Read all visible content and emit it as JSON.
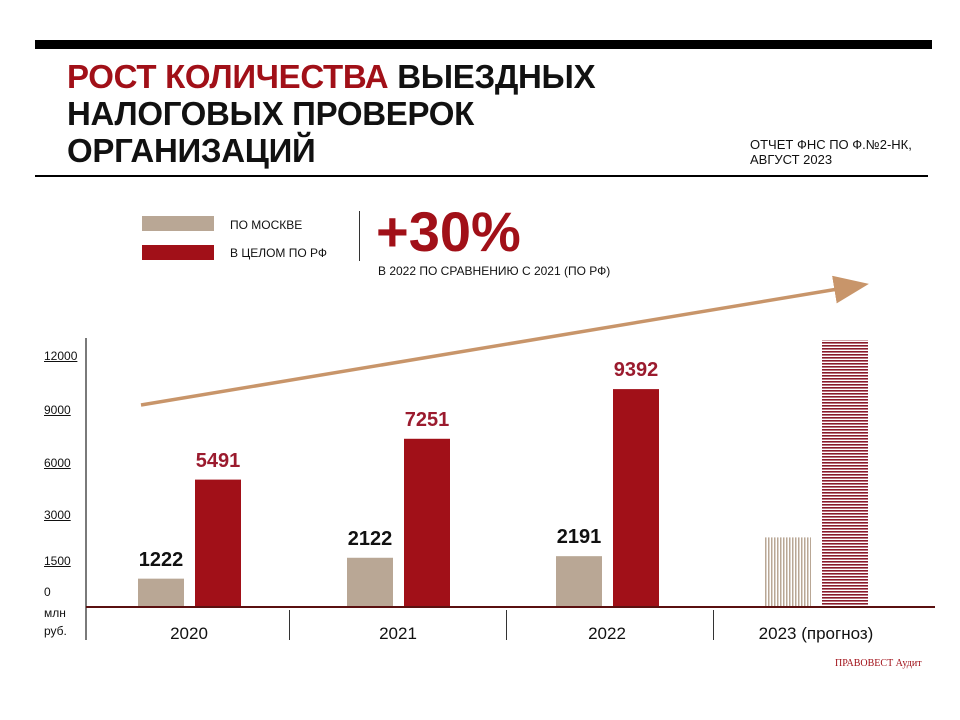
{
  "title": {
    "red": "РОСТ КОЛИЧЕСТВА",
    "rest_line1": " ВЫЕЗДНЫХ",
    "line2": "НАЛОГОВЫХ ПРОВЕРОК",
    "line3": "ОРГАНИЗАЦИЙ"
  },
  "source": {
    "line1": "ОТЧЕТ ФНС ПО Ф.№2-НК,",
    "line2": "АВГУСТ 2023"
  },
  "highlight": {
    "value": "+30%",
    "caption": "В 2022  ПО СРАВНЕНИЮ С 2021 (ПО РФ)"
  },
  "logo": "ПРАВОВЕСТ Аудит",
  "colors": {
    "moscow": "#b9a795",
    "rf": "#a11018",
    "rf_label": "#9b1b2e",
    "arrow": "#c8956a",
    "baseline": "#5a1010"
  },
  "chart_data": {
    "type": "bar",
    "categories": [
      "2020",
      "2021",
      "2022",
      "2023 (прогноз)"
    ],
    "series": [
      {
        "name": "ПО МОСКВЕ",
        "values": [
          1222,
          2122,
          2191,
          3000
        ],
        "labels": [
          "1222",
          "2122",
          "2191",
          ""
        ]
      },
      {
        "name": "В ЦЕЛОМ ПО РФ",
        "values": [
          5491,
          7251,
          9392,
          11500
        ],
        "labels": [
          "5491",
          "7251",
          "9392",
          ""
        ]
      }
    ],
    "forecast_category": "2023 (прогноз)",
    "yticks": [
      "12000",
      "9000",
      "6000",
      "3000",
      "1500",
      "0"
    ],
    "ylabel_line1": "млн",
    "ylabel_line2": "руб.",
    "legend_placement": "top-left",
    "trend_arrow": true,
    "grid": false
  }
}
